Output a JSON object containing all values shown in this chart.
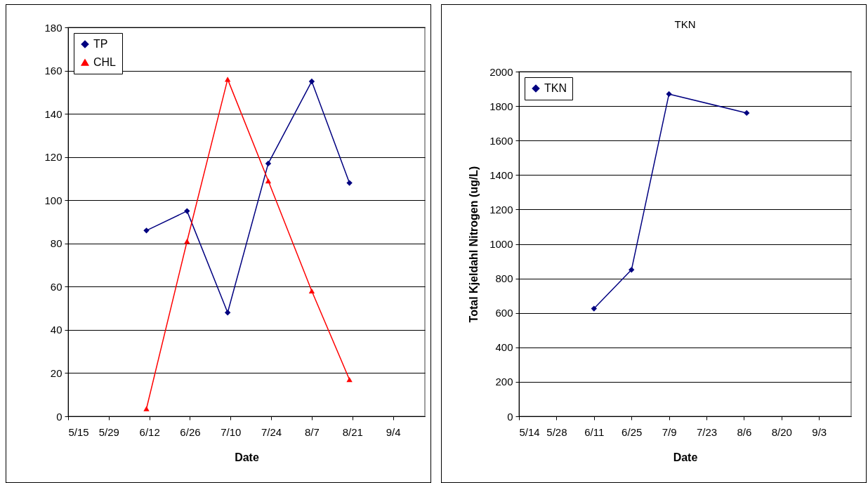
{
  "chart_data": [
    {
      "type": "line",
      "xlabel": "Date",
      "x": [
        "--06-11",
        "--06-25",
        "--07-09",
        "--07-23",
        "--08-07",
        "--08-20"
      ],
      "series": [
        {
          "name": "TP",
          "color": "#000080",
          "marker": "diamond",
          "values": [
            86,
            95,
            48,
            117,
            155,
            108
          ]
        },
        {
          "name": "CHL",
          "color": "#ff0000",
          "marker": "triangle",
          "values": [
            3.5,
            81,
            156,
            109,
            58,
            17
          ]
        }
      ],
      "xlim": [
        "--05-15",
        "--09-15"
      ],
      "xticks": [
        {
          "value": "--05-15",
          "label": "5/15"
        },
        {
          "value": "--05-29",
          "label": "5/29"
        },
        {
          "value": "--06-12",
          "label": "6/12"
        },
        {
          "value": "--06-26",
          "label": "6/26"
        },
        {
          "value": "--07-10",
          "label": "7/10"
        },
        {
          "value": "--07-24",
          "label": "7/24"
        },
        {
          "value": "--08-07",
          "label": "8/7"
        },
        {
          "value": "--08-21",
          "label": "8/21"
        },
        {
          "value": "--09-04",
          "label": "9/4"
        }
      ],
      "ylim": [
        0,
        180
      ],
      "yticks": [
        0,
        20,
        40,
        60,
        80,
        100,
        120,
        140,
        160,
        180
      ],
      "grid": "y",
      "legend": "top left"
    },
    {
      "type": "line",
      "title": "TKN",
      "xlabel": "Date",
      "ylabel": "Total Kjeldahl Nitrogen (ug/L)",
      "x": [
        "--06-11",
        "--06-25",
        "--07-09",
        "--08-07"
      ],
      "series": [
        {
          "name": "TKN",
          "color": "#000080",
          "marker": "diamond",
          "values": [
            625,
            850,
            1870,
            1760
          ]
        }
      ],
      "xlim": [
        "--05-14",
        "--09-15"
      ],
      "xticks": [
        {
          "value": "--05-14",
          "label": "5/14"
        },
        {
          "value": "--05-28",
          "label": "5/28"
        },
        {
          "value": "--06-11",
          "label": "6/11"
        },
        {
          "value": "--06-25",
          "label": "6/25"
        },
        {
          "value": "--07-09",
          "label": "7/9"
        },
        {
          "value": "--07-23",
          "label": "7/23"
        },
        {
          "value": "--08-06",
          "label": "8/6"
        },
        {
          "value": "--08-20",
          "label": "8/20"
        },
        {
          "value": "--09-03",
          "label": "9/3"
        }
      ],
      "ylim": [
        0,
        2000
      ],
      "yticks": [
        0,
        200,
        400,
        600,
        800,
        1000,
        1200,
        1400,
        1600,
        1800,
        2000
      ],
      "grid": "y",
      "legend": "top left"
    }
  ]
}
